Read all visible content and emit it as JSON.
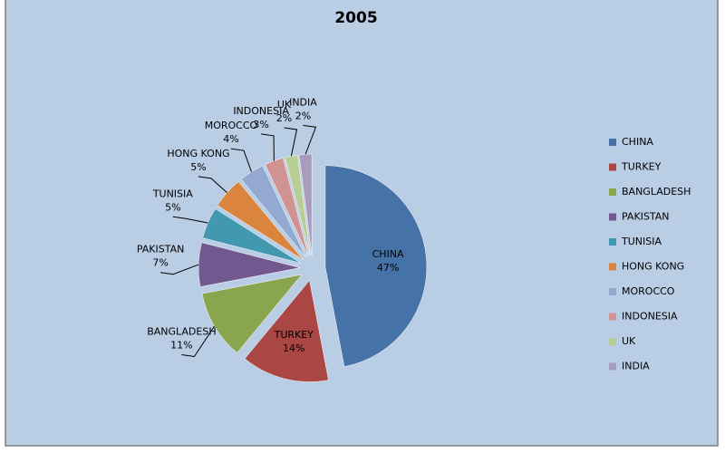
{
  "chart_data": {
    "type": "pie",
    "title": "2005",
    "categories": [
      "CHINA",
      "TURKEY",
      "BANGLADESH",
      "PAKISTAN",
      "TUNISIA",
      "HONG KONG",
      "MOROCCO",
      "INDONESIA",
      "UK",
      "INDIA"
    ],
    "values": [
      47,
      14,
      11,
      7,
      5,
      5,
      4,
      3,
      2,
      2
    ],
    "value_labels": [
      "47%",
      "14%",
      "11%",
      "7%",
      "5%",
      "5%",
      "4%",
      "3%",
      "2%",
      "2%"
    ],
    "colors": [
      "#4572a7",
      "#aa4643",
      "#89a54e",
      "#71588f",
      "#4198af",
      "#db843d",
      "#93a9cf",
      "#d19392",
      "#b9cd96",
      "#a99bbd"
    ],
    "legend": "right"
  }
}
